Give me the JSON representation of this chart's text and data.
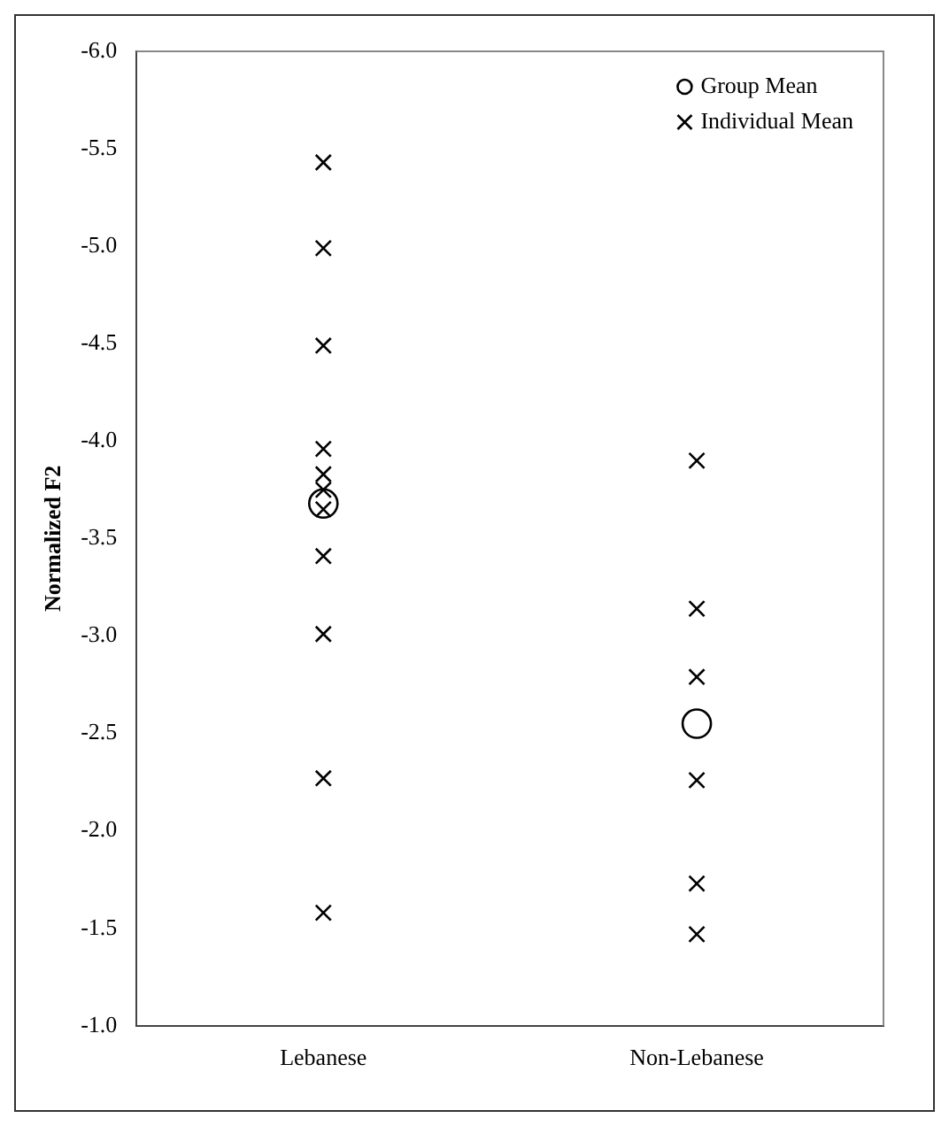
{
  "chart_data": {
    "type": "scatter",
    "ylabel": "Normalized F2",
    "categories": [
      "Lebanese",
      "Non-Lebanese"
    ],
    "series": [
      {
        "name": "Group Mean",
        "color": "#000000",
        "marker": "circle",
        "x": [
          "Lebanese",
          "Non-Lebanese"
        ],
        "values": [
          -3.68,
          -2.55
        ]
      },
      {
        "name": "Individual Mean",
        "color": "#000000",
        "marker": "cross",
        "x": [
          "Lebanese",
          "Lebanese",
          "Lebanese",
          "Lebanese",
          "Lebanese",
          "Lebanese",
          "Lebanese",
          "Lebanese",
          "Lebanese",
          "Lebanese",
          "Lebanese",
          "Non-Lebanese",
          "Non-Lebanese",
          "Non-Lebanese",
          "Non-Lebanese",
          "Non-Lebanese",
          "Non-Lebanese"
        ],
        "values": [
          -5.43,
          -4.99,
          -4.49,
          -3.96,
          -3.83,
          -3.75,
          -3.65,
          -3.41,
          -3.01,
          -2.27,
          -1.58,
          -3.9,
          -3.14,
          -2.79,
          -2.26,
          -1.73,
          -1.47
        ]
      }
    ],
    "ylim": [
      -1.0,
      -6.0
    ],
    "yticks": [
      {
        "value": -6,
        "label": "-6.0"
      },
      {
        "value": -5.5,
        "label": "-5.5"
      },
      {
        "value": -5,
        "label": "-5.0"
      },
      {
        "value": -4.5,
        "label": "-4.5"
      },
      {
        "value": -4,
        "label": "-4.0"
      },
      {
        "value": -3.5,
        "label": "-3.5"
      },
      {
        "value": -3,
        "label": "-3.0"
      },
      {
        "value": -2.5,
        "label": "-2.5"
      },
      {
        "value": -2,
        "label": "-2.0"
      },
      {
        "value": -1.5,
        "label": "-1.5"
      },
      {
        "value": -1,
        "label": "-1.0"
      }
    ],
    "grid": false,
    "legend": "top right"
  }
}
